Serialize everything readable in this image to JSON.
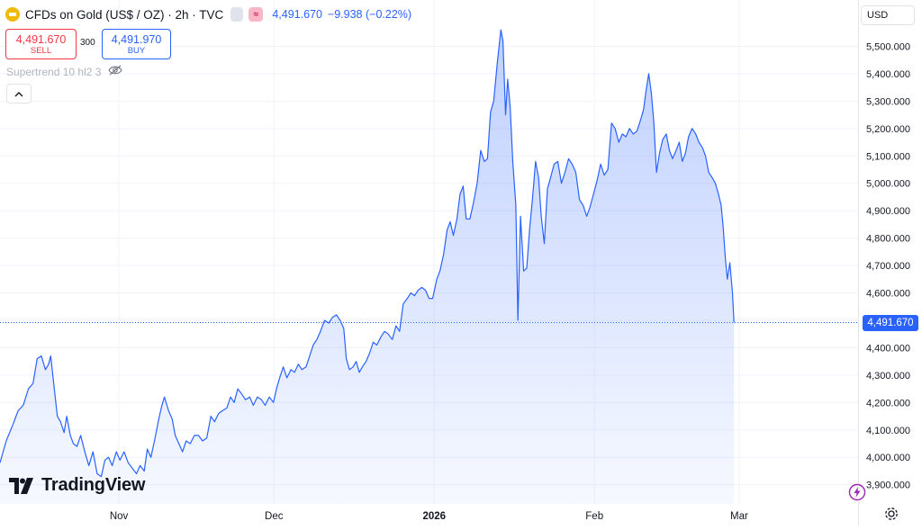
{
  "header": {
    "title": "CFDs on Gold (US$ / OZ) · 2h · TVC",
    "last_price": "4,491.670",
    "change": "−9.938 (−0.22%)",
    "pink_button_glyph": "≈"
  },
  "trade": {
    "sell_price": "4,491.670",
    "sell_label": "SELL",
    "spread": "300",
    "buy_price": "4,491.970",
    "buy_label": "BUY"
  },
  "indicator": {
    "label": "Supertrend 10 hl2 3"
  },
  "currency": "USD",
  "price_tag": "4,491.670",
  "brand": "TradingView",
  "colors": {
    "line": "#2962ff",
    "area_top": "#2962ff",
    "sell": "#f23645",
    "buy": "#2962ff",
    "grid": "#f0f3fa",
    "axis_text": "#131722"
  },
  "icons": [
    "gold-coin-icon",
    "eye-off-icon",
    "chevron-up-icon",
    "lightning-icon",
    "settings-icon",
    "tradingview-logo-icon"
  ],
  "chart_data": {
    "type": "area",
    "title": "CFDs on Gold (US$ / OZ)",
    "xlabel": "",
    "ylabel": "",
    "x_tick_labels": [
      "Nov",
      "Dec",
      "2026",
      "Feb",
      "Mar"
    ],
    "x_tick_days": [
      11,
      41,
      72,
      103,
      131
    ],
    "y_ticks": [
      3900,
      4000,
      4100,
      4200,
      4300,
      4400,
      4500,
      4600,
      4700,
      4800,
      4900,
      5000,
      5100,
      5200,
      5300,
      5400,
      5500
    ],
    "ylim": [
      3830,
      5610
    ],
    "xlim": [
      -12,
      154
    ],
    "grid": true,
    "last_value": 4491.67,
    "series": [
      {
        "values": [
          [
            -12.0,
            3980
          ],
          [
            -10.8,
            4060
          ],
          [
            -9.5,
            4120
          ],
          [
            -8.5,
            4170
          ],
          [
            -7.5,
            4190
          ],
          [
            -6.5,
            4250
          ],
          [
            -5.6,
            4270
          ],
          [
            -4.8,
            4360
          ],
          [
            -4.0,
            4370
          ],
          [
            -3.2,
            4320
          ],
          [
            -2.6,
            4340
          ],
          [
            -2.2,
            4370
          ],
          [
            -1.5,
            4250
          ],
          [
            -0.9,
            4150
          ],
          [
            -0.3,
            4130
          ],
          [
            0.4,
            4090
          ],
          [
            0.9,
            4150
          ],
          [
            1.6,
            4080
          ],
          [
            2.2,
            4050
          ],
          [
            2.9,
            4040
          ],
          [
            3.6,
            4080
          ],
          [
            4.4,
            4020
          ],
          [
            5.2,
            3970
          ],
          [
            6.0,
            4020
          ],
          [
            6.8,
            3940
          ],
          [
            7.6,
            3930
          ],
          [
            8.3,
            3990
          ],
          [
            9.0,
            4000
          ],
          [
            9.7,
            3970
          ],
          [
            10.5,
            4020
          ],
          [
            11.2,
            3990
          ],
          [
            12.0,
            4020
          ],
          [
            12.8,
            3980
          ],
          [
            13.6,
            3960
          ],
          [
            14.4,
            3940
          ],
          [
            15.1,
            3970
          ],
          [
            15.9,
            3950
          ],
          [
            16.5,
            4030
          ],
          [
            17.2,
            4000
          ],
          [
            18.0,
            4070
          ],
          [
            18.6,
            4130
          ],
          [
            19.2,
            4180
          ],
          [
            19.8,
            4220
          ],
          [
            20.6,
            4170
          ],
          [
            21.3,
            4140
          ],
          [
            21.9,
            4080
          ],
          [
            22.6,
            4050
          ],
          [
            23.3,
            4020
          ],
          [
            24.0,
            4060
          ],
          [
            24.8,
            4050
          ],
          [
            25.6,
            4080
          ],
          [
            26.4,
            4080
          ],
          [
            27.2,
            4060
          ],
          [
            28.0,
            4070
          ],
          [
            28.8,
            4150
          ],
          [
            29.5,
            4130
          ],
          [
            30.3,
            4160
          ],
          [
            31.0,
            4170
          ],
          [
            31.9,
            4180
          ],
          [
            32.6,
            4220
          ],
          [
            33.3,
            4200
          ],
          [
            34.0,
            4250
          ],
          [
            34.8,
            4230
          ],
          [
            35.5,
            4210
          ],
          [
            36.3,
            4220
          ],
          [
            37.0,
            4190
          ],
          [
            37.8,
            4220
          ],
          [
            38.6,
            4210
          ],
          [
            39.3,
            4190
          ],
          [
            40.1,
            4220
          ],
          [
            40.9,
            4200
          ],
          [
            41.5,
            4250
          ],
          [
            42.1,
            4290
          ],
          [
            42.8,
            4330
          ],
          [
            43.5,
            4290
          ],
          [
            44.3,
            4320
          ],
          [
            45.0,
            4310
          ],
          [
            45.7,
            4340
          ],
          [
            46.4,
            4320
          ],
          [
            47.2,
            4330
          ],
          [
            47.9,
            4370
          ],
          [
            48.6,
            4410
          ],
          [
            49.3,
            4430
          ],
          [
            50.0,
            4460
          ],
          [
            50.8,
            4500
          ],
          [
            51.6,
            4490
          ],
          [
            52.3,
            4510
          ],
          [
            53.1,
            4520
          ],
          [
            53.8,
            4500
          ],
          [
            54.5,
            4470
          ],
          [
            55.0,
            4360
          ],
          [
            55.6,
            4320
          ],
          [
            56.3,
            4330
          ],
          [
            56.9,
            4350
          ],
          [
            57.5,
            4310
          ],
          [
            58.1,
            4330
          ],
          [
            58.8,
            4350
          ],
          [
            59.5,
            4380
          ],
          [
            60.2,
            4420
          ],
          [
            60.9,
            4410
          ],
          [
            61.7,
            4440
          ],
          [
            62.4,
            4460
          ],
          [
            63.1,
            4450
          ],
          [
            63.9,
            4430
          ],
          [
            64.6,
            4480
          ],
          [
            65.3,
            4460
          ],
          [
            66.0,
            4560
          ],
          [
            66.8,
            4580
          ],
          [
            67.5,
            4600
          ],
          [
            68.2,
            4590
          ],
          [
            68.9,
            4610
          ],
          [
            69.6,
            4620
          ],
          [
            70.3,
            4610
          ],
          [
            71.0,
            4580
          ],
          [
            71.7,
            4580
          ],
          [
            72.5,
            4650
          ],
          [
            73.1,
            4680
          ],
          [
            73.8,
            4740
          ],
          [
            74.5,
            4830
          ],
          [
            75.1,
            4860
          ],
          [
            75.7,
            4810
          ],
          [
            76.4,
            4870
          ],
          [
            77.0,
            4960
          ],
          [
            77.6,
            4990
          ],
          [
            78.2,
            4870
          ],
          [
            78.9,
            4870
          ],
          [
            79.6,
            4930
          ],
          [
            80.3,
            5000
          ],
          [
            81.0,
            5120
          ],
          [
            81.7,
            5080
          ],
          [
            82.3,
            5090
          ],
          [
            82.9,
            5260
          ],
          [
            83.5,
            5300
          ],
          [
            84.2,
            5440
          ],
          [
            84.9,
            5560
          ],
          [
            85.3,
            5520
          ],
          [
            85.8,
            5250
          ],
          [
            86.2,
            5380
          ],
          [
            86.7,
            5280
          ],
          [
            87.2,
            5080
          ],
          [
            87.8,
            4920
          ],
          [
            88.2,
            4500
          ],
          [
            88.7,
            4880
          ],
          [
            89.3,
            4680
          ],
          [
            89.9,
            4690
          ],
          [
            90.5,
            4840
          ],
          [
            91.0,
            4940
          ],
          [
            91.6,
            5080
          ],
          [
            92.2,
            5020
          ],
          [
            92.7,
            4880
          ],
          [
            93.3,
            4780
          ],
          [
            93.9,
            4980
          ],
          [
            94.5,
            5020
          ],
          [
            95.2,
            5070
          ],
          [
            95.9,
            5080
          ],
          [
            96.6,
            5000
          ],
          [
            97.3,
            5040
          ],
          [
            98.0,
            5090
          ],
          [
            98.7,
            5070
          ],
          [
            99.4,
            5040
          ],
          [
            100.1,
            4940
          ],
          [
            100.8,
            4920
          ],
          [
            101.5,
            4880
          ],
          [
            102.1,
            4910
          ],
          [
            102.8,
            4960
          ],
          [
            103.5,
            5010
          ],
          [
            104.2,
            5070
          ],
          [
            104.9,
            5030
          ],
          [
            105.6,
            5050
          ],
          [
            106.3,
            5220
          ],
          [
            107.0,
            5200
          ],
          [
            107.7,
            5150
          ],
          [
            108.4,
            5180
          ],
          [
            109.1,
            5170
          ],
          [
            109.8,
            5200
          ],
          [
            110.5,
            5180
          ],
          [
            111.2,
            5190
          ],
          [
            111.9,
            5230
          ],
          [
            112.5,
            5270
          ],
          [
            113.0,
            5340
          ],
          [
            113.5,
            5400
          ],
          [
            114.0,
            5330
          ],
          [
            114.5,
            5220
          ],
          [
            115.0,
            5040
          ],
          [
            115.6,
            5110
          ],
          [
            116.2,
            5160
          ],
          [
            116.9,
            5180
          ],
          [
            117.5,
            5120
          ],
          [
            118.1,
            5090
          ],
          [
            118.8,
            5120
          ],
          [
            119.4,
            5150
          ],
          [
            120.0,
            5080
          ],
          [
            120.6,
            5110
          ],
          [
            121.2,
            5170
          ],
          [
            121.9,
            5200
          ],
          [
            122.6,
            5180
          ],
          [
            123.2,
            5150
          ],
          [
            123.9,
            5130
          ],
          [
            124.5,
            5100
          ],
          [
            125.1,
            5040
          ],
          [
            125.8,
            5020
          ],
          [
            126.4,
            5000
          ],
          [
            127.0,
            4960
          ],
          [
            127.5,
            4920
          ],
          [
            127.9,
            4840
          ],
          [
            128.3,
            4730
          ],
          [
            128.7,
            4650
          ],
          [
            129.2,
            4710
          ],
          [
            129.7,
            4600
          ],
          [
            130.0,
            4491.67
          ]
        ]
      }
    ]
  }
}
